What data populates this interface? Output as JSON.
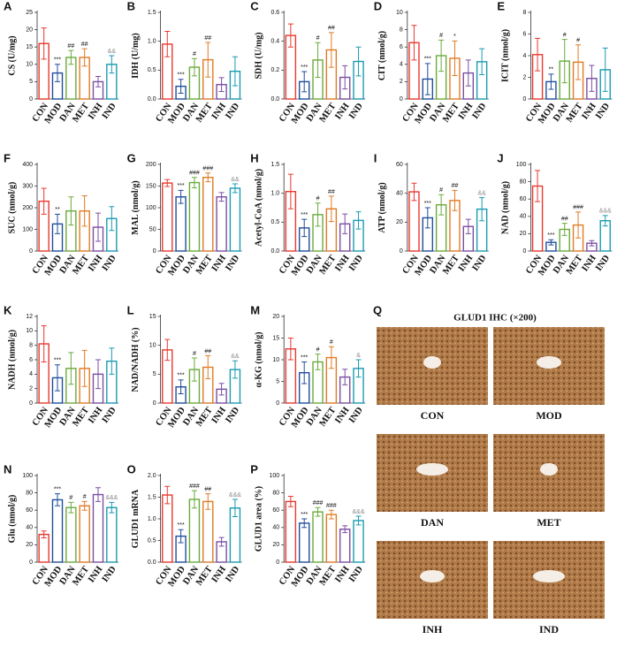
{
  "chart_data": [
    {
      "type": "bar",
      "panel": "A",
      "ylabel": "CS (U/mg)",
      "categories": [
        "CON",
        "MOD",
        "DAN",
        "MET",
        "INH",
        "IND"
      ],
      "values": [
        16,
        7.5,
        12,
        12,
        5,
        10
      ],
      "errors": [
        4.5,
        2.5,
        2,
        2.5,
        1.5,
        2.5
      ],
      "annotations": [
        null,
        "***",
        "##",
        "##",
        null,
        "&&"
      ],
      "colors": [
        "#e8392f",
        "#1f4e9c",
        "#6aab3a",
        "#e07b24",
        "#7b4ea3",
        "#1a9bb0"
      ],
      "ylim": [
        0,
        25
      ],
      "yticks": [
        0,
        5,
        10,
        15,
        20,
        25
      ]
    },
    {
      "type": "bar",
      "panel": "B",
      "ylabel": "IDH (U/mg)",
      "categories": [
        "CON",
        "MOD",
        "DAN",
        "MET",
        "INH",
        "IND"
      ],
      "values": [
        0.95,
        0.22,
        0.55,
        0.68,
        0.25,
        0.48
      ],
      "errors": [
        0.22,
        0.12,
        0.15,
        0.3,
        0.12,
        0.25
      ],
      "annotations": [
        null,
        "***",
        "#",
        "##",
        null,
        null
      ],
      "colors": [
        "#e8392f",
        "#1f4e9c",
        "#6aab3a",
        "#e07b24",
        "#7b4ea3",
        "#1a9bb0"
      ],
      "ylim": [
        0,
        1.5
      ],
      "yticks": [
        {
          "value": 0,
          "label": "0.0"
        },
        {
          "value": 0.5,
          "label": "0.5"
        },
        {
          "value": 1,
          "label": "1.0"
        },
        {
          "value": 1.5,
          "label": "1.5"
        }
      ]
    },
    {
      "type": "bar",
      "panel": "C",
      "ylabel": "SDH (U/mg)",
      "categories": [
        "CON",
        "MOD",
        "DAN",
        "MET",
        "INH",
        "IND"
      ],
      "values": [
        0.44,
        0.12,
        0.27,
        0.34,
        0.15,
        0.26
      ],
      "errors": [
        0.08,
        0.07,
        0.12,
        0.12,
        0.08,
        0.1
      ],
      "annotations": [
        null,
        "***",
        "#",
        "##",
        null,
        null
      ],
      "colors": [
        "#e8392f",
        "#1f4e9c",
        "#6aab3a",
        "#e07b24",
        "#7b4ea3",
        "#1a9bb0"
      ],
      "ylim": [
        0,
        0.6
      ],
      "yticks": [
        {
          "value": 0,
          "label": "0.0"
        },
        {
          "value": 0.2,
          "label": "0.2"
        },
        {
          "value": 0.4,
          "label": "0.4"
        },
        {
          "value": 0.6,
          "label": "0.6"
        }
      ]
    },
    {
      "type": "bar",
      "panel": "D",
      "ylabel": "CIT (nmol/g)",
      "categories": [
        "CON",
        "MOD",
        "DAN",
        "MET",
        "INH",
        "IND"
      ],
      "values": [
        6.5,
        2.3,
        5,
        4.7,
        3,
        4.3
      ],
      "errors": [
        2,
        1.8,
        1.8,
        2,
        1.5,
        1.5
      ],
      "annotations": [
        null,
        "***",
        "#",
        "*",
        null,
        null
      ],
      "colors": [
        "#e8392f",
        "#1f4e9c",
        "#6aab3a",
        "#e07b24",
        "#7b4ea3",
        "#1a9bb0"
      ],
      "ylim": [
        0,
        10
      ],
      "yticks": [
        0,
        2,
        4,
        6,
        8,
        10
      ]
    },
    {
      "type": "bar",
      "panel": "E",
      "ylabel": "ICIT (nmol/g)",
      "categories": [
        "CON",
        "MOD",
        "DAN",
        "MET",
        "INH",
        "IND"
      ],
      "values": [
        4.1,
        1.6,
        3.5,
        3.4,
        1.9,
        2.7
      ],
      "errors": [
        1.5,
        0.7,
        2,
        1.6,
        1.2,
        2
      ],
      "annotations": [
        null,
        "**",
        "#",
        "#",
        null,
        null
      ],
      "colors": [
        "#e8392f",
        "#1f4e9c",
        "#6aab3a",
        "#e07b24",
        "#7b4ea3",
        "#1a9bb0"
      ],
      "ylim": [
        0,
        8
      ],
      "yticks": [
        0,
        2,
        4,
        6,
        8
      ]
    },
    {
      "type": "bar",
      "panel": "F",
      "ylabel": "SUC (nmol/g)",
      "categories": [
        "CON",
        "MOD",
        "DAN",
        "MET",
        "INH",
        "IND"
      ],
      "values": [
        230,
        125,
        185,
        185,
        110,
        150
      ],
      "errors": [
        60,
        45,
        65,
        70,
        65,
        55
      ],
      "annotations": [
        null,
        "**",
        null,
        null,
        null,
        null
      ],
      "colors": [
        "#e8392f",
        "#1f4e9c",
        "#6aab3a",
        "#e07b24",
        "#7b4ea3",
        "#1a9bb0"
      ],
      "ylim": [
        0,
        400
      ],
      "yticks": [
        0,
        100,
        200,
        300,
        400
      ]
    },
    {
      "type": "bar",
      "panel": "G",
      "ylabel": "MAL (nmol/g)",
      "categories": [
        "CON",
        "MOD",
        "DAN",
        "MET",
        "INH",
        "IND"
      ],
      "values": [
        157,
        125,
        158,
        170,
        125,
        145
      ],
      "errors": [
        8,
        15,
        12,
        10,
        10,
        10
      ],
      "annotations": [
        null,
        "***",
        "###",
        "###",
        null,
        "&&"
      ],
      "colors": [
        "#e8392f",
        "#1f4e9c",
        "#6aab3a",
        "#e07b24",
        "#7b4ea3",
        "#1a9bb0"
      ],
      "ylim": [
        0,
        200
      ],
      "yticks": [
        0,
        50,
        100,
        150,
        200
      ]
    },
    {
      "type": "bar",
      "panel": "H",
      "ylabel": "Acetyl-CoA (nmol/g)",
      "categories": [
        "CON",
        "MOD",
        "DAN",
        "MET",
        "INH",
        "IND"
      ],
      "values": [
        1.03,
        0.4,
        0.63,
        0.73,
        0.47,
        0.53
      ],
      "errors": [
        0.3,
        0.15,
        0.2,
        0.22,
        0.17,
        0.15
      ],
      "annotations": [
        null,
        "***",
        "#",
        "##",
        null,
        null
      ],
      "colors": [
        "#e8392f",
        "#1f4e9c",
        "#6aab3a",
        "#e07b24",
        "#7b4ea3",
        "#1a9bb0"
      ],
      "ylim": [
        0,
        1.5
      ],
      "yticks": [
        {
          "value": 0,
          "label": "0.0"
        },
        {
          "value": 0.5,
          "label": "0.5"
        },
        {
          "value": 1,
          "label": "1.0"
        },
        {
          "value": 1.5,
          "label": "1.5"
        }
      ]
    },
    {
      "type": "bar",
      "panel": "I",
      "ylabel": "ATP (nmol/g)",
      "categories": [
        "CON",
        "MOD",
        "DAN",
        "MET",
        "INH",
        "IND"
      ],
      "values": [
        41,
        23,
        32,
        35,
        17,
        29
      ],
      "errors": [
        6,
        7,
        7,
        7,
        5,
        8
      ],
      "annotations": [
        null,
        "***",
        "#",
        "##",
        null,
        "&&"
      ],
      "colors": [
        "#e8392f",
        "#1f4e9c",
        "#6aab3a",
        "#e07b24",
        "#7b4ea3",
        "#1a9bb0"
      ],
      "ylim": [
        0,
        60
      ],
      "yticks": [
        0,
        20,
        40,
        60
      ]
    },
    {
      "type": "bar",
      "panel": "J",
      "ylabel": "NAD (nmol/g)",
      "categories": [
        "CON",
        "MOD",
        "DAN",
        "MET",
        "INH",
        "IND"
      ],
      "values": [
        75,
        10,
        25,
        30,
        9,
        35
      ],
      "errors": [
        18,
        3,
        7,
        15,
        3,
        6
      ],
      "annotations": [
        null,
        "***",
        "##",
        "###",
        null,
        "&&&"
      ],
      "colors": [
        "#e8392f",
        "#1f4e9c",
        "#6aab3a",
        "#e07b24",
        "#7b4ea3",
        "#1a9bb0"
      ],
      "ylim": [
        0,
        100
      ],
      "yticks": [
        0,
        20,
        40,
        60,
        80,
        100
      ]
    },
    {
      "type": "bar",
      "panel": "K",
      "ylabel": "NADH (nmol/g)",
      "categories": [
        "CON",
        "MOD",
        "DAN",
        "MET",
        "INH",
        "IND"
      ],
      "values": [
        8.2,
        3.5,
        4.8,
        4.8,
        4,
        5.8
      ],
      "errors": [
        2.5,
        1.8,
        2.2,
        2.5,
        2,
        1.8
      ],
      "annotations": [
        null,
        "***",
        null,
        null,
        null,
        null
      ],
      "colors": [
        "#e8392f",
        "#1f4e9c",
        "#6aab3a",
        "#e07b24",
        "#7b4ea3",
        "#1a9bb0"
      ],
      "ylim": [
        0,
        12
      ],
      "yticks": [
        0,
        2,
        4,
        6,
        8,
        10,
        12
      ]
    },
    {
      "type": "bar",
      "panel": "L",
      "ylabel": "NAD/NADH (%)",
      "categories": [
        "CON",
        "MOD",
        "DAN",
        "MET",
        "INH",
        "IND"
      ],
      "values": [
        9.2,
        2.8,
        5.8,
        6.2,
        2.4,
        5.8
      ],
      "errors": [
        1.8,
        1.2,
        2,
        2,
        1,
        1.5
      ],
      "annotations": [
        null,
        "***",
        "#",
        "##",
        null,
        "&&"
      ],
      "colors": [
        "#e8392f",
        "#1f4e9c",
        "#6aab3a",
        "#e07b24",
        "#7b4ea3",
        "#1a9bb0"
      ],
      "ylim": [
        0,
        15
      ],
      "yticks": [
        0,
        5,
        10,
        15
      ]
    },
    {
      "type": "bar",
      "panel": "M",
      "ylabel": "α-KG (nmol/g)",
      "categories": [
        "CON",
        "MOD",
        "DAN",
        "MET",
        "INH",
        "IND"
      ],
      "values": [
        12.5,
        7,
        9.5,
        10.5,
        6,
        8
      ],
      "errors": [
        2.5,
        2.5,
        1.8,
        2.5,
        1.8,
        2
      ],
      "annotations": [
        null,
        "***",
        "#",
        "#",
        null,
        "&"
      ],
      "colors": [
        "#e8392f",
        "#1f4e9c",
        "#6aab3a",
        "#e07b24",
        "#7b4ea3",
        "#1a9bb0"
      ],
      "ylim": [
        0,
        20
      ],
      "yticks": [
        0,
        5,
        10,
        15,
        20
      ]
    },
    {
      "type": "bar",
      "panel": "N",
      "ylabel": "Glu (nmol/g)",
      "categories": [
        "CON",
        "MOD",
        "DAN",
        "MET",
        "INH",
        "IND"
      ],
      "values": [
        32,
        72,
        63,
        65,
        78,
        63
      ],
      "errors": [
        4,
        7,
        6,
        5,
        8,
        6
      ],
      "annotations": [
        null,
        "***",
        "#",
        "#",
        null,
        "&&&"
      ],
      "colors": [
        "#e8392f",
        "#1f4e9c",
        "#6aab3a",
        "#e07b24",
        "#7b4ea3",
        "#1a9bb0"
      ],
      "ylim": [
        0,
        100
      ],
      "yticks": [
        0,
        20,
        40,
        60,
        80,
        100
      ]
    },
    {
      "type": "bar",
      "panel": "O",
      "ylabel": "GLUD1 mRNA",
      "categories": [
        "CON",
        "MOD",
        "DAN",
        "MET",
        "INH",
        "IND"
      ],
      "values": [
        1.55,
        0.6,
        1.45,
        1.4,
        0.47,
        1.25
      ],
      "errors": [
        0.2,
        0.15,
        0.2,
        0.18,
        0.1,
        0.2
      ],
      "annotations": [
        null,
        "***",
        "###",
        "##",
        null,
        "&&&"
      ],
      "colors": [
        "#e8392f",
        "#1f4e9c",
        "#6aab3a",
        "#e07b24",
        "#7b4ea3",
        "#1a9bb0"
      ],
      "ylim": [
        0,
        2
      ],
      "yticks": [
        {
          "value": 0,
          "label": "0.0"
        },
        {
          "value": 0.5,
          "label": "0.5"
        },
        {
          "value": 1,
          "label": "1.0"
        },
        {
          "value": 1.5,
          "label": "1.5"
        },
        {
          "value": 2,
          "label": "2.0"
        }
      ]
    },
    {
      "type": "bar",
      "panel": "P",
      "ylabel": "GLUD1 area (%)",
      "categories": [
        "CON",
        "MOD",
        "DAN",
        "MET",
        "INH",
        "IND"
      ],
      "values": [
        70,
        45,
        58,
        55,
        38,
        48
      ],
      "errors": [
        6,
        5,
        5,
        5,
        4,
        5
      ],
      "annotations": [
        null,
        "***",
        "###",
        "###",
        null,
        "&&&"
      ],
      "colors": [
        "#e8392f",
        "#1f4e9c",
        "#6aab3a",
        "#e07b24",
        "#7b4ea3",
        "#1a9bb0"
      ],
      "ylim": [
        0,
        100
      ],
      "yticks": [
        0,
        20,
        40,
        60,
        80,
        100
      ]
    }
  ],
  "ihc_panel": {
    "panel": "Q",
    "title": "GLUD1 IHC (×200)",
    "images": [
      "CON",
      "MOD",
      "DAN",
      "MET",
      "INH",
      "IND"
    ]
  }
}
